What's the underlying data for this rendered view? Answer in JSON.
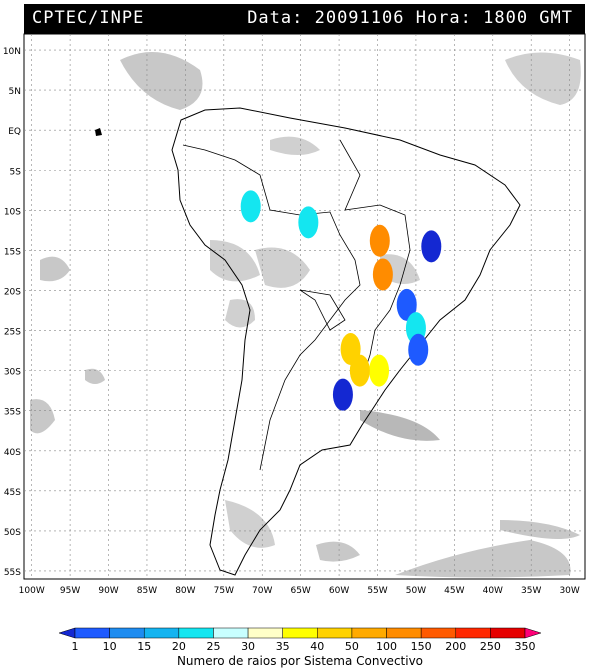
{
  "header": {
    "source": "CPTEC/INPE",
    "info": "Data: 20091106 Hora: 1800 GMT"
  },
  "map": {
    "lat_labels": [
      "10N",
      "5N",
      "EQ",
      "5S",
      "10S",
      "15S",
      "20S",
      "25S",
      "30S",
      "35S",
      "40S",
      "45S",
      "50S",
      "55S"
    ],
    "lat_values": [
      10,
      5,
      0,
      -5,
      -10,
      -15,
      -20,
      -25,
      -30,
      -35,
      -40,
      -45,
      -50,
      -55
    ],
    "lon_labels": [
      "100W",
      "95W",
      "90W",
      "85W",
      "80W",
      "75W",
      "70W",
      "65W",
      "60W",
      "55W",
      "50W",
      "45W",
      "40W",
      "35W",
      "30W"
    ],
    "lon_values": [
      -100,
      -95,
      -90,
      -85,
      -80,
      -75,
      -70,
      -65,
      -60,
      -55,
      -50,
      -45,
      -40,
      -35,
      -30
    ],
    "lat_range": [
      -56,
      12
    ],
    "lon_range": [
      -101,
      -28
    ]
  },
  "colorbar": {
    "title": "Numero de raios por Sistema Convectivo",
    "labels": [
      "1",
      "10",
      "15",
      "20",
      "25",
      "30",
      "35",
      "40",
      "50",
      "100",
      "150",
      "200",
      "250",
      "350"
    ],
    "colors": [
      "#1428d2",
      "#1e5aff",
      "#1e8cf0",
      "#14b4f0",
      "#14e6f0",
      "#c8ffff",
      "#ffffc8",
      "#ffff00",
      "#ffd200",
      "#ffaa00",
      "#ff8c00",
      "#ff5a00",
      "#ff2800",
      "#e60000",
      "#ff0078"
    ]
  },
  "systems": [
    {
      "lon": -71.5,
      "lat": -9.5,
      "color": "#14e6f0"
    },
    {
      "lon": -64.0,
      "lat": -11.5,
      "color": "#14e6f0"
    },
    {
      "lon": -54.7,
      "lat": -13.8,
      "color": "#ff8c00"
    },
    {
      "lon": -54.3,
      "lat": -18.0,
      "color": "#ff8c00"
    },
    {
      "lon": -58.5,
      "lat": -27.3,
      "color": "#ffd200"
    },
    {
      "lon": -54.8,
      "lat": -30.0,
      "color": "#ffff00"
    },
    {
      "lon": -57.3,
      "lat": -30.0,
      "color": "#ffd200"
    },
    {
      "lon": -48.0,
      "lat": -14.5,
      "color": "#1428d2"
    },
    {
      "lon": -51.2,
      "lat": -21.8,
      "color": "#1e5aff"
    },
    {
      "lon": -50.0,
      "lat": -24.7,
      "color": "#14e6f0"
    },
    {
      "lon": -49.7,
      "lat": -27.4,
      "color": "#1e5aff"
    },
    {
      "lon": -59.5,
      "lat": -33.0,
      "color": "#1428d2"
    }
  ]
}
